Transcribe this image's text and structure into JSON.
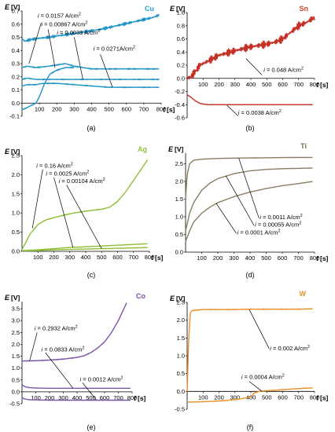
{
  "chart_data": [
    {
      "type": "line",
      "panel_label": "(a)",
      "metal": "Cu",
      "metal_color": "#29a6d8",
      "ylabel": "E",
      "yunit": "[V]",
      "xlabel": "t",
      "xunit": "[s]",
      "xlim": [
        0,
        800
      ],
      "ylim": [
        -0.1,
        0.7
      ],
      "xticks": [
        100,
        200,
        300,
        400,
        500,
        600,
        700,
        800
      ],
      "yticks": [
        -0.1,
        0,
        0.1,
        0.2,
        0.3,
        0.4,
        0.5,
        0.6,
        0.7
      ],
      "ytick_labels": [
        "-0.1",
        "0.0",
        "0.1",
        "0.2",
        "0.3",
        "0.4",
        "0.5",
        "0.6",
        "0.7"
      ],
      "series": [
        {
          "color": "#1f93c6",
          "noise": 0.012,
          "x": [
            0,
            15,
            40,
            80,
            150,
            250,
            350,
            450,
            550,
            650,
            750,
            790
          ],
          "y": [
            0.49,
            0.47,
            0.48,
            0.49,
            0.5,
            0.52,
            0.54,
            0.56,
            0.59,
            0.62,
            0.65,
            0.67
          ]
        },
        {
          "color": "#1f93c6",
          "noise": 0.004,
          "x": [
            0,
            30,
            80,
            150,
            200,
            250,
            300,
            350,
            400,
            500,
            600,
            700,
            790
          ],
          "y": [
            0.27,
            0.28,
            0.27,
            0.28,
            0.29,
            0.3,
            0.28,
            0.27,
            0.26,
            0.26,
            0.26,
            0.26,
            0.26
          ]
        },
        {
          "color": "#1f93c6",
          "noise": 0.003,
          "x": [
            0,
            30,
            80,
            150,
            250,
            350,
            450,
            550,
            650,
            790
          ],
          "y": [
            0.18,
            0.19,
            0.18,
            0.18,
            0.18,
            0.18,
            0.18,
            0.18,
            0.18,
            0.18
          ]
        },
        {
          "color": "#1f93c6",
          "noise": 0.003,
          "x": [
            0,
            30,
            80,
            120,
            200,
            300,
            400,
            500,
            600,
            700,
            790
          ],
          "y": [
            0.13,
            0.14,
            0.14,
            0.15,
            0.15,
            0.14,
            0.13,
            0.12,
            0.12,
            0.12,
            0.12
          ]
        },
        {
          "color": "#1f93c6",
          "noise": 0.004,
          "x": [
            0,
            20,
            50,
            80,
            100,
            130,
            160,
            200,
            250,
            300
          ],
          "y": [
            -0.05,
            -0.04,
            -0.02,
            0.0,
            0.05,
            0.15,
            0.22,
            0.25,
            0.27,
            0.27
          ]
        }
      ],
      "annotations": [
        {
          "text_pre": "i",
          "text": " = 0.0157 A/cm",
          "sup": "2",
          "tx": 90,
          "ty": 0.65,
          "ax": 110,
          "ay": 0.61,
          "bx": 40,
          "by": 0.3
        },
        {
          "text_pre": "i",
          "text": " = 0.00867 A/cm",
          "sup": "2",
          "tx": 110,
          "ty": 0.585,
          "ax": 150,
          "ay": 0.56,
          "bx": 190,
          "by": 0.27
        },
        {
          "text_pre": "i",
          "text": " = 0.0033 A/cm",
          "sup": "2",
          "tx": 200,
          "ty": 0.52,
          "ax": 300,
          "ay": 0.5,
          "bx": 350,
          "by": 0.18
        },
        {
          "text_pre": "i",
          "text": " = 0.0271A/cm",
          "sup": "2",
          "tx": 410,
          "ty": 0.4,
          "ax": 450,
          "ay": 0.37,
          "bx": 520,
          "by": 0.12
        }
      ]
    },
    {
      "type": "line",
      "panel_label": "(b)",
      "metal": "Sn",
      "metal_color": "#d6472d",
      "ylabel": "E",
      "yunit": "[V]",
      "xlabel": "t",
      "xunit": "[s]",
      "xlim": [
        0,
        800
      ],
      "ylim": [
        -0.6,
        1.0
      ],
      "xticks": [
        100,
        200,
        300,
        400,
        500,
        600,
        700,
        800
      ],
      "yticks": [
        -0.6,
        -0.4,
        -0.2,
        0,
        0.2,
        0.4,
        0.6,
        0.8,
        1.0
      ],
      "ytick_labels": [
        "-0.6",
        "-0.4",
        "-0.2",
        "0.0",
        "0.2",
        "0.4",
        "0.6",
        "0.8",
        "1.0"
      ],
      "series": [
        {
          "color": "#c53026",
          "noise": 0.06,
          "x": [
            0,
            20,
            50,
            80,
            120,
            200,
            300,
            400,
            500,
            550,
            600,
            650,
            700,
            750,
            780,
            800
          ],
          "y": [
            0.0,
            0.02,
            0.1,
            0.2,
            0.25,
            0.35,
            0.42,
            0.48,
            0.52,
            0.55,
            0.6,
            0.7,
            0.8,
            0.85,
            0.9,
            0.92
          ]
        },
        {
          "color": "#c53026",
          "noise": 0.002,
          "x": [
            0,
            20,
            50,
            80,
            100,
            130,
            200,
            300,
            500,
            700,
            790
          ],
          "y": [
            -0.25,
            -0.28,
            -0.34,
            -0.38,
            -0.39,
            -0.4,
            -0.4,
            -0.4,
            -0.4,
            -0.4,
            -0.4
          ]
        }
      ],
      "annotations": [
        {
          "text_pre": "i",
          "text": " = 0.048 A/cm",
          "sup": "2",
          "tx": 480,
          "ty": 0.1,
          "ax": 470,
          "ay": 0.05,
          "bx": 370,
          "by": 0.3
        },
        {
          "text_pre": "i",
          "text": " = 0.0038 A/cm",
          "sup": "2",
          "tx": 320,
          "ty": -0.55,
          "ax": 320,
          "ay": -0.57,
          "bx": 250,
          "by": -0.41
        }
      ]
    },
    {
      "type": "line",
      "panel_label": "(c)",
      "metal": "Ag",
      "metal_color": "#93c23f",
      "ylabel": "E",
      "yunit": "[V]",
      "xlabel": "t",
      "xunit": "[s]",
      "xlim": [
        0,
        800
      ],
      "ylim": [
        0,
        2.5
      ],
      "xticks": [
        100,
        200,
        300,
        400,
        500,
        600,
        700,
        800
      ],
      "yticks": [
        0,
        0.5,
        1.0,
        1.5,
        2.0,
        2.5
      ],
      "ytick_labels": [
        "0.0",
        "0.5",
        "1.0",
        "1.5",
        "2.0",
        "2.5"
      ],
      "series": [
        {
          "color": "#8fbf3a",
          "noise": 0.008,
          "x": [
            0,
            20,
            50,
            100,
            150,
            200,
            300,
            400,
            500,
            550,
            600,
            650,
            700,
            750,
            790
          ],
          "y": [
            0.05,
            0.2,
            0.45,
            0.7,
            0.82,
            0.88,
            0.98,
            1.05,
            1.1,
            1.15,
            1.3,
            1.55,
            1.85,
            2.15,
            2.4
          ]
        },
        {
          "color": "#8fbf3a",
          "noise": 0.003,
          "x": [
            0,
            100,
            200,
            300,
            400,
            500,
            600,
            700,
            790
          ],
          "y": [
            0.02,
            0.04,
            0.07,
            0.1,
            0.12,
            0.14,
            0.16,
            0.18,
            0.2
          ]
        },
        {
          "color": "#8fbf3a",
          "noise": 0.002,
          "x": [
            0,
            100,
            200,
            300,
            400,
            500,
            600,
            700,
            790
          ],
          "y": [
            0.01,
            0.02,
            0.04,
            0.05,
            0.06,
            0.07,
            0.08,
            0.09,
            0.1
          ]
        }
      ],
      "annotations": [
        {
          "text_pre": "i",
          "text": " = 0.16 A/cm",
          "sup": "2",
          "tx": 90,
          "ty": 2.18,
          "ax": 130,
          "ay": 2.14,
          "bx": 65,
          "by": 0.6
        },
        {
          "text_pre": "i",
          "text": " = 0.0025 A/cm",
          "sup": "2",
          "tx": 150,
          "ty": 1.98,
          "ax": 200,
          "ay": 1.93,
          "bx": 320,
          "by": 0.1
        },
        {
          "text_pre": "i",
          "text": " = 0.00104 A/cm",
          "sup": "2",
          "tx": 230,
          "ty": 1.78,
          "ax": 280,
          "ay": 1.73,
          "bx": 500,
          "by": 0.07
        }
      ]
    },
    {
      "type": "line",
      "panel_label": "(d)",
      "metal": "Ti",
      "metal_color": "#7a6c50",
      "ylabel": "E",
      "yunit": "[V]",
      "xlabel": "t",
      "xunit": "[s]",
      "xlim": [
        0,
        800
      ],
      "ylim": [
        0,
        2.8
      ],
      "xticks": [
        100,
        200,
        300,
        400,
        500,
        600,
        700,
        800
      ],
      "yticks": [
        0,
        0.5,
        1.0,
        1.5,
        2.0,
        2.5
      ],
      "ytick_labels": [
        "0.0",
        "0.5",
        "1.0",
        "1.5",
        "2.0",
        "2.5"
      ],
      "series": [
        {
          "color": "#8b7d62",
          "noise": 0.0,
          "x": [
            0,
            10,
            25,
            50,
            100,
            200,
            300,
            500,
            700,
            790
          ],
          "y": [
            1.5,
            2.2,
            2.5,
            2.6,
            2.63,
            2.65,
            2.66,
            2.67,
            2.68,
            2.68
          ]
        },
        {
          "color": "#8b7d62",
          "noise": 0.0,
          "x": [
            0,
            25,
            50,
            100,
            150,
            200,
            300,
            400,
            500,
            600,
            700,
            790
          ],
          "y": [
            0.6,
            1.1,
            1.4,
            1.75,
            1.95,
            2.08,
            2.22,
            2.3,
            2.34,
            2.36,
            2.37,
            2.38
          ]
        },
        {
          "color": "#8b7d62",
          "noise": 0.0,
          "x": [
            0,
            25,
            50,
            100,
            150,
            200,
            300,
            400,
            500,
            600,
            700,
            790
          ],
          "y": [
            0.3,
            0.6,
            0.85,
            1.1,
            1.27,
            1.4,
            1.57,
            1.7,
            1.8,
            1.88,
            1.94,
            2.0
          ]
        }
      ],
      "annotations": [
        {
          "text_pre": "i",
          "text": " = 0.0011 A/cm",
          "sup": "2",
          "tx": 460,
          "ty": 0.93,
          "ax": 455,
          "ay": 0.96,
          "bx": 330,
          "by": 2.66
        },
        {
          "text_pre": "i",
          "text": " = 0.00055 A/cm",
          "sup": "2",
          "tx": 430,
          "ty": 0.72,
          "ax": 425,
          "ay": 0.75,
          "bx": 250,
          "by": 2.16
        },
        {
          "text_pre": "i",
          "text": " = 0.0001 A/cm",
          "sup": "2",
          "tx": 320,
          "ty": 0.5,
          "ax": 315,
          "ay": 0.53,
          "bx": 190,
          "by": 1.38
        }
      ]
    },
    {
      "type": "line",
      "panel_label": "(e)",
      "metal": "Co",
      "metal_color": "#7a4fa0",
      "ylabel": "E",
      "yunit": "[V]",
      "xlabel": "t",
      "xunit": "[s]",
      "xlim": [
        0,
        800
      ],
      "ylim": [
        -0.5,
        3.8
      ],
      "xticks": [
        100,
        200,
        300,
        400,
        500,
        600,
        700,
        800
      ],
      "yticks": [
        -0.5,
        0,
        0.5,
        1.0,
        1.5,
        2.0,
        2.5,
        3.0,
        3.5
      ],
      "ytick_labels": [
        "-0.5",
        "0.0",
        "0.5",
        "1.0",
        "1.5",
        "2.0",
        "2.5",
        "3.0",
        "3.5"
      ],
      "series": [
        {
          "color": "#7d55a5",
          "noise": 0.01,
          "x": [
            0,
            100,
            200,
            300,
            400,
            450,
            500,
            550,
            600,
            650,
            700,
            740,
            760
          ],
          "y": [
            1.3,
            1.31,
            1.34,
            1.38,
            1.45,
            1.52,
            1.65,
            1.85,
            2.1,
            2.5,
            3.0,
            3.5,
            3.75
          ]
        },
        {
          "color": "#7d55a5",
          "noise": 0.0,
          "x": [
            0,
            20,
            50,
            100,
            200,
            400,
            600,
            790
          ],
          "y": [
            0.3,
            0.22,
            0.18,
            0.16,
            0.15,
            0.15,
            0.15,
            0.15
          ]
        },
        {
          "color": "#7d55a5",
          "noise": 0.0,
          "x": [
            0,
            20,
            50,
            100,
            200,
            400,
            600,
            790
          ],
          "y": [
            -0.25,
            -0.3,
            -0.33,
            -0.34,
            -0.35,
            -0.35,
            -0.35,
            -0.35
          ]
        }
      ],
      "annotations": [
        {
          "text_pre": "i",
          "text": " = 0.2932 A/cm",
          "sup": "2",
          "tx": 90,
          "ty": 2.6,
          "ax": 110,
          "ay": 2.5,
          "bx": 55,
          "by": 1.3
        },
        {
          "text_pre": "i",
          "text": " = 0.0833 A/cm",
          "sup": "2",
          "tx": 140,
          "ty": 1.7,
          "ax": 170,
          "ay": 1.65,
          "bx": 370,
          "by": 0.16
        },
        {
          "text_pre": "i",
          "text": " = 0.0012 A/cm",
          "sup": "2",
          "tx": 420,
          "ty": 0.45,
          "ax": 440,
          "ay": 0.38,
          "bx": 540,
          "by": -0.34
        }
      ]
    },
    {
      "type": "line",
      "panel_label": "(f)",
      "metal": "W",
      "metal_color": "#e8912c",
      "ylabel": "E",
      "yunit": "[V]",
      "xlabel": "t",
      "xunit": "[s]",
      "xlim": [
        0,
        800
      ],
      "ylim": [
        -0.5,
        2.5
      ],
      "xticks": [
        100,
        200,
        300,
        400,
        500,
        600,
        700,
        800
      ],
      "yticks": [
        -0.5,
        0,
        0.5,
        1.0,
        1.5,
        2.0,
        2.5
      ],
      "ytick_labels": [
        "-0.5",
        "0.0",
        "0.5",
        "1.0",
        "1.5",
        "2.0",
        "2.5"
      ],
      "series": [
        {
          "color": "#e8912c",
          "noise": 0.008,
          "x": [
            0,
            10,
            20,
            30,
            50,
            100,
            200,
            300,
            400,
            500,
            600,
            700,
            790
          ],
          "y": [
            0.0,
            1.5,
            2.2,
            2.27,
            2.28,
            2.3,
            2.3,
            2.3,
            2.31,
            2.31,
            2.31,
            2.31,
            2.32
          ]
        },
        {
          "color": "#e8912c",
          "noise": 0.004,
          "x": [
            0,
            100,
            200,
            300,
            350,
            400,
            420,
            450,
            500,
            600,
            700,
            790
          ],
          "y": [
            -0.3,
            -0.29,
            -0.27,
            -0.23,
            -0.2,
            -0.15,
            -0.05,
            0.0,
            0.02,
            0.05,
            0.08,
            0.1
          ]
        }
      ],
      "annotations": [
        {
          "text_pre": "i",
          "text": " = 0.002 A/cm",
          "sup": "2",
          "tx": 520,
          "ty": 1.15,
          "ax": 515,
          "ay": 1.2,
          "bx": 390,
          "by": 2.3
        },
        {
          "text_pre": "i",
          "text": " = 0.0004 A/cm",
          "sup": "2",
          "tx": 340,
          "ty": 0.35,
          "ax": 390,
          "ay": 0.28,
          "bx": 470,
          "by": 0.0
        }
      ]
    }
  ]
}
